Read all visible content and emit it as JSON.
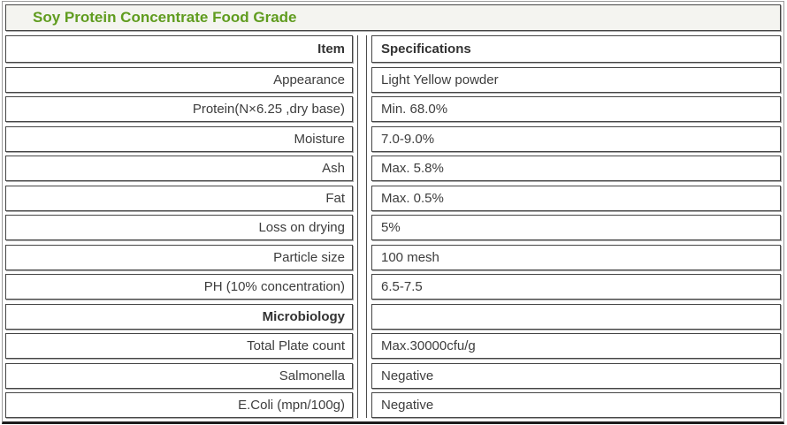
{
  "page": {
    "title": "Soy Protein Concentrate Food Grade"
  },
  "table": {
    "header": {
      "item": "Item",
      "spec": "Specifications"
    },
    "rows": [
      {
        "item": "Appearance",
        "spec": "Light Yellow powder"
      },
      {
        "item": "Protein(N×6.25 ,dry base)",
        "spec": "Min. 68.0%"
      },
      {
        "item": "Moisture",
        "spec": "7.0-9.0%"
      },
      {
        "item": "Ash",
        "spec": "Max. 5.8%"
      },
      {
        "item": "Fat",
        "spec": "Max. 0.5%"
      },
      {
        "item": "Loss on drying",
        "spec": "5%"
      },
      {
        "item": "Particle size",
        "spec": "100 mesh"
      },
      {
        "item": "PH (10% concentration)",
        "spec": "6.5-7.5"
      },
      {
        "item": "Microbiology",
        "spec": ""
      },
      {
        "item": "Total Plate count",
        "spec": "Max.30000cfu/g"
      },
      {
        "item": "Salmonella",
        "spec": "Negative"
      },
      {
        "item": "E.Coli (mpn/100g)",
        "spec": "Negative"
      }
    ],
    "colors": {
      "title_green": "#609c1f",
      "title_background": "#f4f4f0",
      "cell_border": "#454545",
      "cell_shadow": "#a8a8a8",
      "frame_border": "#9b9b9b",
      "frame_bottom": "#1c1c1c",
      "text": "#3d3d3d"
    }
  }
}
